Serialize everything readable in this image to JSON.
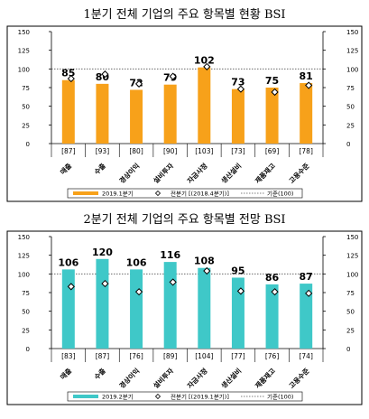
{
  "chart_data": [
    {
      "type": "bar",
      "title": "1분기 전체 기업의 주요 항목별 현황 BSI",
      "categories": [
        "매출",
        "수출",
        "경상이익",
        "설비투자",
        "자금사정",
        "생산설비",
        "제품재고",
        "고용수준"
      ],
      "category_brackets": [
        "[87]",
        "[93]",
        "[80]",
        "[90]",
        "[103]",
        "[73]",
        "[69]",
        "[78]"
      ],
      "ylim": [
        0,
        150
      ],
      "yticks": [
        0,
        25,
        50,
        75,
        100,
        125,
        150
      ],
      "series": [
        {
          "name": "2019.1분기",
          "type": "bar",
          "color": "#f7a11a",
          "values": [
            85,
            80,
            72,
            79,
            102,
            73,
            75,
            81
          ]
        },
        {
          "name": "전분기 [(2018.4분기)]",
          "type": "marker",
          "values": [
            87,
            93,
            80,
            90,
            103,
            73,
            69,
            78
          ]
        }
      ],
      "reference": {
        "name": "기준(100)",
        "value": 100
      },
      "legend": {
        "position": "bottom",
        "bar_label": "2019.1분기",
        "marker_label": "전분기 [(2018.4분기)]",
        "line_label": "기준(100)"
      }
    },
    {
      "type": "bar",
      "title": "2분기 전체 기업의 주요 항목별 전망 BSI",
      "categories": [
        "매출",
        "수출",
        "경상이익",
        "설비투자",
        "자금사정",
        "생산설비",
        "제품재고",
        "고용수준"
      ],
      "category_brackets": [
        "[83]",
        "[87]",
        "[76]",
        "[89]",
        "[104]",
        "[77]",
        "[76]",
        "[74]"
      ],
      "ylim": [
        0,
        150
      ],
      "yticks": [
        0,
        25,
        50,
        75,
        100,
        125,
        150
      ],
      "series": [
        {
          "name": "2019.2분기",
          "type": "bar",
          "color": "#3fc8c8",
          "values": [
            106,
            120,
            106,
            116,
            108,
            95,
            86,
            87
          ]
        },
        {
          "name": "전분기 [(2019.1분기)]",
          "type": "marker",
          "values": [
            83,
            87,
            76,
            89,
            104,
            77,
            76,
            74
          ]
        }
      ],
      "reference": {
        "name": "기준(100)",
        "value": 100
      },
      "legend": {
        "position": "bottom",
        "bar_label": "2019.2분기",
        "marker_label": "전분기 [(2019.1분기)]",
        "line_label": "기준(100)"
      }
    }
  ]
}
